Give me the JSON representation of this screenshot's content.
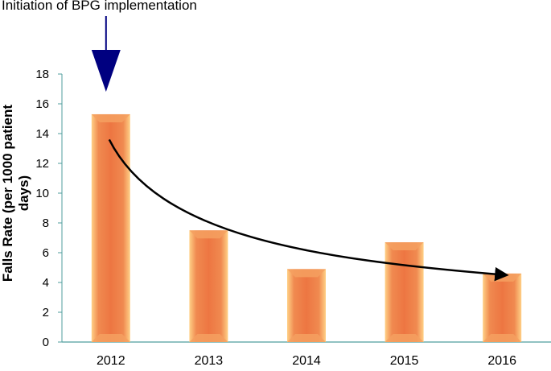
{
  "chart_data": {
    "type": "bar",
    "categories": [
      "2012",
      "2013",
      "2014",
      "2015",
      "2016"
    ],
    "values": [
      15.3,
      7.5,
      4.9,
      6.7,
      4.6
    ],
    "ylabel": "Falls Rate (per 1000 patient days)",
    "xlabel": "",
    "ylim": [
      0,
      18
    ],
    "yticks": [
      0,
      2,
      4,
      6,
      8,
      10,
      12,
      14,
      16,
      18
    ],
    "grid": false,
    "annotation": {
      "text": "Initiation of BPG implementation",
      "target_category": "2012"
    },
    "trend": "decreasing curved arrow from 2012 to 2016",
    "colors": {
      "bar": "#ED7642",
      "bar_light": "#FFC276",
      "arrow": "#000080",
      "axis": "#4F9D9D"
    }
  }
}
